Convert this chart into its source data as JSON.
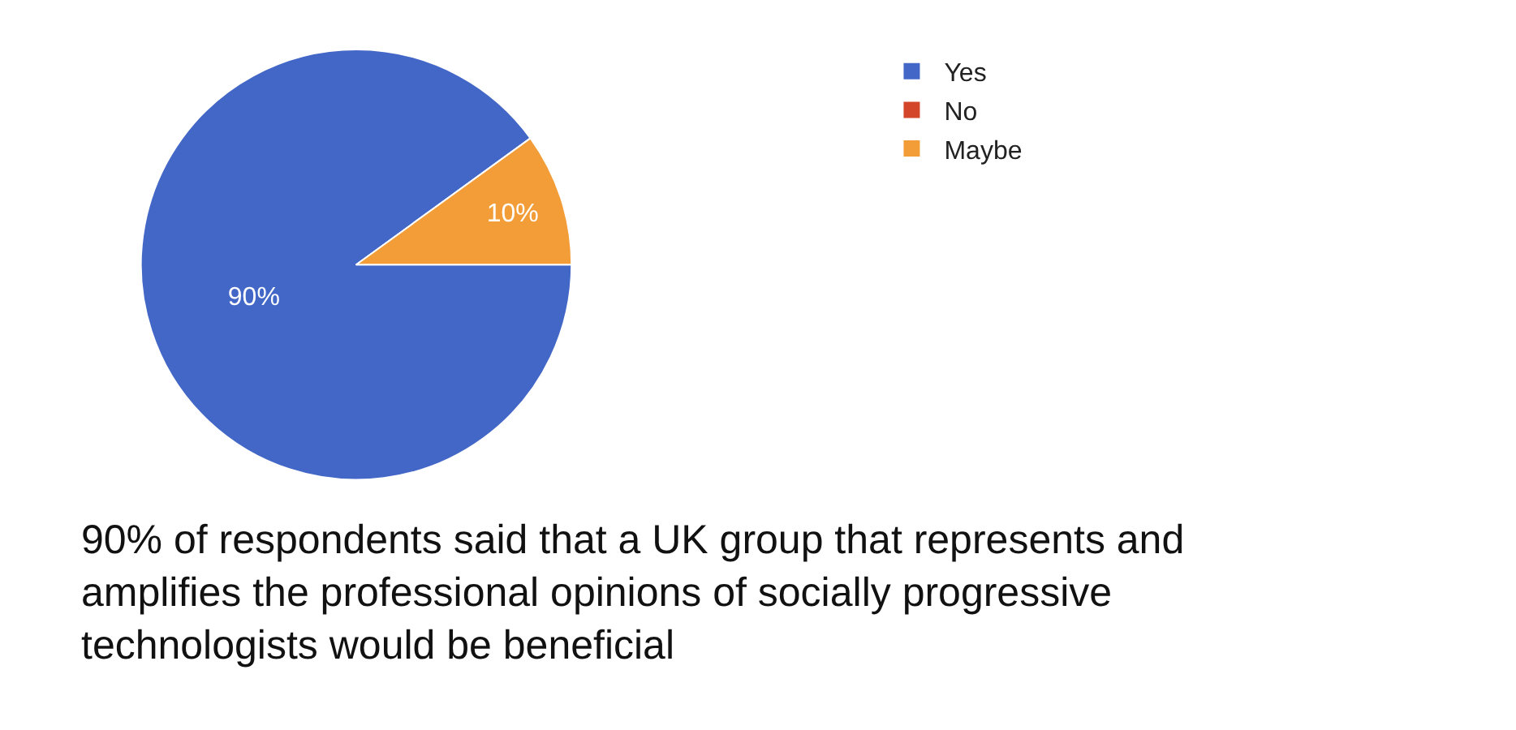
{
  "chart_data": {
    "type": "pie",
    "categories": [
      "Yes",
      "No",
      "Maybe"
    ],
    "values": [
      90,
      0,
      10
    ],
    "colors": [
      "#4267c7",
      "#d4462a",
      "#f29d38"
    ],
    "value_labels": [
      "90%",
      null,
      "10%"
    ],
    "legend": "top right",
    "annotations": [
      "90% of respondents said that a UK group that represents and amplifies the professional opinions of socially progressive technologists would be beneficial"
    ]
  }
}
